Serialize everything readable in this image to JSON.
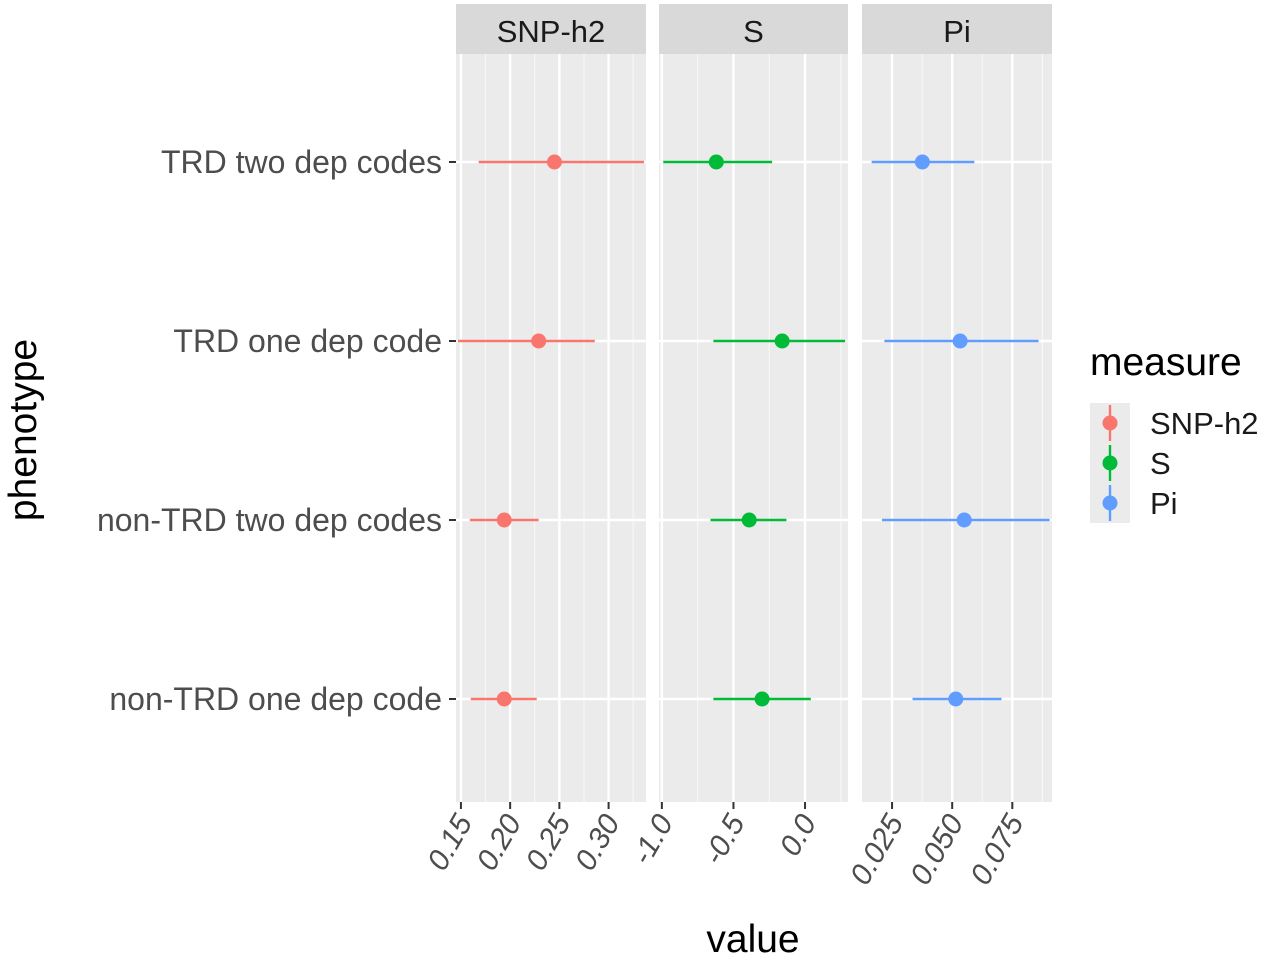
{
  "chart_data": {
    "type": "forest",
    "xlabel": "value",
    "ylabel": "phenotype",
    "categories": [
      "TRD two dep codes",
      "TRD one dep code",
      "non-TRD two dep codes",
      "non-TRD one dep code"
    ],
    "legend": {
      "title": "measure",
      "position": "right",
      "entries": [
        "SNP-h2",
        "S",
        "Pi"
      ]
    },
    "grid": true,
    "panels": [
      {
        "name": "SNP-h2",
        "color": "#F8766D",
        "xlim": [
          0.145,
          0.338
        ],
        "ticks": [
          0.15,
          0.2,
          0.25,
          0.3
        ],
        "tick_labels": [
          "0.15",
          "0.20",
          "0.25",
          "0.30"
        ],
        "points": [
          {
            "category": "TRD two dep codes",
            "estimate": 0.245,
            "lower": 0.168,
            "upper": 0.336
          },
          {
            "category": "TRD one dep code",
            "estimate": 0.229,
            "lower": 0.147,
            "upper": 0.286
          },
          {
            "category": "non-TRD two dep codes",
            "estimate": 0.194,
            "lower": 0.159,
            "upper": 0.229
          },
          {
            "category": "non-TRD one dep code",
            "estimate": 0.194,
            "lower": 0.16,
            "upper": 0.227
          }
        ]
      },
      {
        "name": "S",
        "color": "#00BA38",
        "xlim": [
          -1.02,
          0.3
        ],
        "ticks": [
          -1.0,
          -0.5,
          0.0
        ],
        "tick_labels": [
          "-1.0",
          "-0.5",
          "0.0"
        ],
        "points": [
          {
            "category": "TRD two dep codes",
            "estimate": -0.62,
            "lower": -0.99,
            "upper": -0.23
          },
          {
            "category": "TRD one dep code",
            "estimate": -0.16,
            "lower": -0.64,
            "upper": 0.28
          },
          {
            "category": "non-TRD two dep codes",
            "estimate": -0.39,
            "lower": -0.66,
            "upper": -0.13
          },
          {
            "category": "non-TRD one dep code",
            "estimate": -0.3,
            "lower": -0.64,
            "upper": 0.04
          }
        ]
      },
      {
        "name": "Pi",
        "color": "#619CFF",
        "xlim": [
          0.0125,
          0.0915
        ],
        "ticks": [
          0.025,
          0.05,
          0.075
        ],
        "tick_labels": [
          "0.025",
          "0.050",
          "0.075"
        ],
        "points": [
          {
            "category": "TRD two dep codes",
            "estimate": 0.0376,
            "lower": 0.0165,
            "upper": 0.0592
          },
          {
            "category": "TRD one dep code",
            "estimate": 0.0533,
            "lower": 0.0218,
            "upper": 0.0859
          },
          {
            "category": "non-TRD two dep codes",
            "estimate": 0.055,
            "lower": 0.0208,
            "upper": 0.0905
          },
          {
            "category": "non-TRD one dep code",
            "estimate": 0.0515,
            "lower": 0.0335,
            "upper": 0.0705
          }
        ]
      }
    ]
  }
}
